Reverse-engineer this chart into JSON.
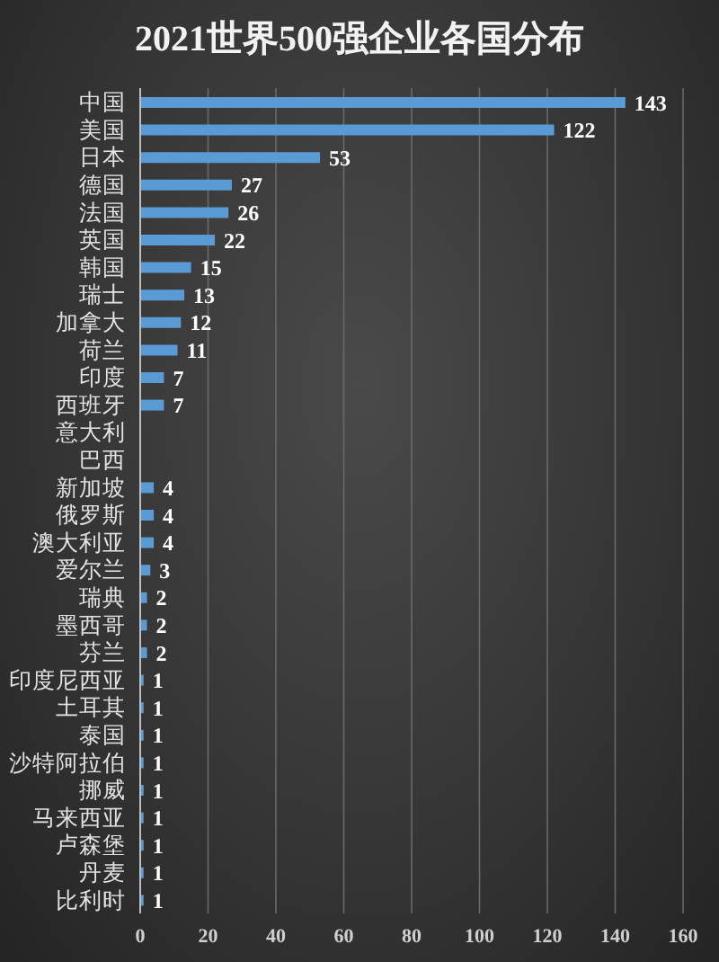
{
  "chart_data": {
    "type": "bar",
    "title": "2021世界500强企业各国分布",
    "orientation": "horizontal",
    "categories": [
      "中国",
      "美国",
      "日本",
      "德国",
      "法国",
      "英国",
      "韩国",
      "瑞士",
      "加拿大",
      "荷兰",
      "印度",
      "西班牙",
      "意大利",
      "巴西",
      "新加坡",
      "俄罗斯",
      "澳大利亚",
      "爱尔兰",
      "瑞典",
      "墨西哥",
      "芬兰",
      "印度尼西亚",
      "土耳其",
      "泰国",
      "沙特阿拉伯",
      "挪威",
      "马来西亚",
      "卢森堡",
      "丹麦",
      "比利时"
    ],
    "values": [
      143,
      122,
      53,
      27,
      26,
      22,
      15,
      13,
      12,
      11,
      7,
      7,
      null,
      null,
      4,
      4,
      4,
      3,
      2,
      2,
      2,
      1,
      1,
      1,
      1,
      1,
      1,
      1,
      1,
      1
    ],
    "color": "#5b9bd5",
    "xlim": [
      0,
      160
    ],
    "xticks": [
      0,
      20,
      40,
      60,
      80,
      100,
      120,
      140,
      160
    ],
    "grid": "x",
    "data_labels": true
  }
}
